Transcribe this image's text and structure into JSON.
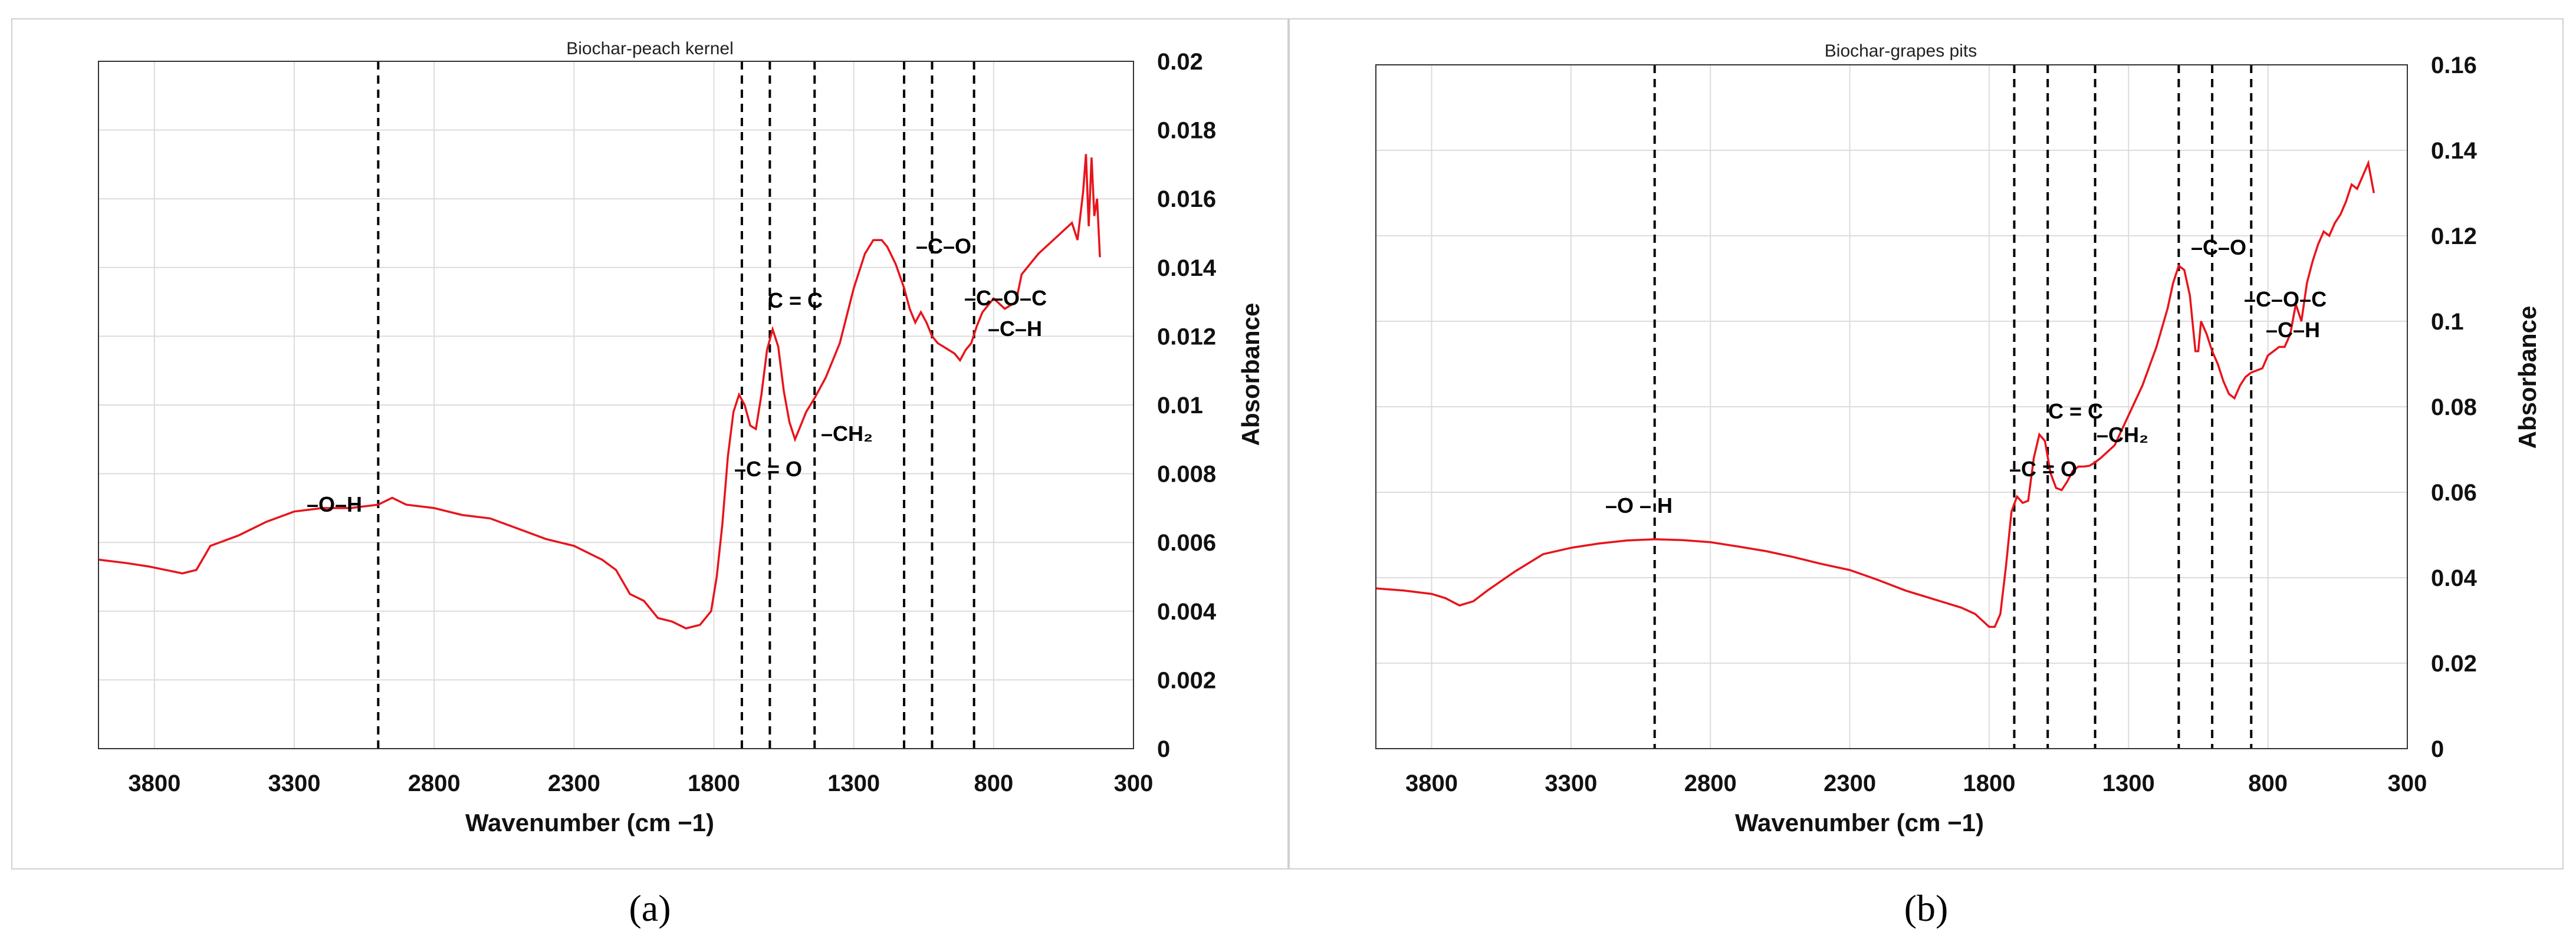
{
  "chart_data": [
    {
      "type": "line",
      "panel_label": "(a)",
      "title": "Biochar-peach kernel",
      "xlabel": "Wavenumber (cm −1)",
      "ylabel": "Absorbance",
      "xlim": [
        4000,
        300
      ],
      "ylim": [
        0,
        0.02
      ],
      "x_ticks": [
        "3800",
        "3300",
        "2800",
        "2300",
        "1800",
        "1300",
        "800",
        "300"
      ],
      "y_ticks": [
        "0",
        "0.002",
        "0.004",
        "0.006",
        "0.008",
        "0.01",
        "0.012",
        "0.014",
        "0.016",
        "0.018",
        "0.02"
      ],
      "y_axis_side": "right",
      "grid": true,
      "line_color": "#e8141b",
      "series": [
        {
          "x": [
            4000,
            3900,
            3820,
            3760,
            3700,
            3650,
            3600,
            3500,
            3400,
            3300,
            3200,
            3100,
            3000,
            2950,
            2900,
            2800,
            2700,
            2600,
            2500,
            2400,
            2300,
            2200,
            2150,
            2100,
            2050,
            2000,
            1950,
            1900,
            1850,
            1810,
            1790,
            1770,
            1750,
            1730,
            1710,
            1690,
            1670,
            1650,
            1630,
            1610,
            1590,
            1570,
            1550,
            1530,
            1510,
            1490,
            1470,
            1440,
            1400,
            1350,
            1300,
            1260,
            1230,
            1200,
            1180,
            1150,
            1120,
            1100,
            1080,
            1060,
            1040,
            1020,
            1000,
            980,
            960,
            940,
            920,
            900,
            880,
            860,
            840,
            800,
            760,
            720,
            700,
            670,
            640,
            600,
            560,
            520,
            500,
            480,
            470,
            460,
            450,
            440,
            430,
            420
          ],
          "values": [
            0.0055,
            0.0054,
            0.0053,
            0.0052,
            0.0051,
            0.0052,
            0.0059,
            0.0062,
            0.0066,
            0.0069,
            0.007,
            0.007,
            0.0071,
            0.0073,
            0.0071,
            0.007,
            0.0068,
            0.0067,
            0.0064,
            0.0061,
            0.0059,
            0.0055,
            0.0052,
            0.0045,
            0.0043,
            0.0038,
            0.0037,
            0.0035,
            0.0036,
            0.004,
            0.005,
            0.0065,
            0.0085,
            0.0098,
            0.0103,
            0.01,
            0.0094,
            0.0093,
            0.0103,
            0.0116,
            0.0122,
            0.0117,
            0.0104,
            0.0095,
            0.009,
            0.0094,
            0.0098,
            0.0102,
            0.0108,
            0.0118,
            0.0134,
            0.0144,
            0.0148,
            0.0148,
            0.0146,
            0.0141,
            0.0134,
            0.0128,
            0.0124,
            0.0127,
            0.0124,
            0.012,
            0.0118,
            0.0117,
            0.0116,
            0.0115,
            0.0113,
            0.0116,
            0.0118,
            0.0123,
            0.0127,
            0.0131,
            0.0128,
            0.013,
            0.0138,
            0.0141,
            0.0144,
            0.0147,
            0.015,
            0.0153,
            0.0148,
            0.0162,
            0.0173,
            0.0152,
            0.0172,
            0.0155,
            0.016,
            0.0143
          ]
        }
      ],
      "reference_lines": [
        {
          "x": 3000,
          "label": "–O–H"
        },
        {
          "x": 1700,
          "label": "–C = O"
        },
        {
          "x": 1600,
          "label": "C = C"
        },
        {
          "x": 1440,
          "label": "–CH₂"
        },
        {
          "x": 1120,
          "label": "–C–O"
        },
        {
          "x": 1020,
          "label": "–C–O–C"
        },
        {
          "x": 870,
          "label": "–C–H"
        }
      ]
    },
    {
      "type": "line",
      "panel_label": "(b)",
      "title": "Biochar-grapes pits",
      "xlabel": "Wavenumber (cm −1)",
      "ylabel": "Absorbance",
      "xlim": [
        4000,
        300
      ],
      "ylim": [
        0,
        0.16
      ],
      "x_ticks": [
        "3800",
        "3300",
        "2800",
        "2300",
        "1800",
        "1300",
        "800",
        "300"
      ],
      "y_ticks": [
        "0",
        "0.02",
        "0.04",
        "0.06",
        "0.08",
        "0.1",
        "0.12",
        "0.14",
        "0.16"
      ],
      "y_axis_side": "right",
      "grid": true,
      "line_color": "#e8141b",
      "series": [
        {
          "x": [
            4000,
            3900,
            3800,
            3750,
            3700,
            3650,
            3600,
            3500,
            3400,
            3300,
            3200,
            3100,
            3000,
            2900,
            2800,
            2700,
            2600,
            2500,
            2400,
            2300,
            2200,
            2100,
            2000,
            1900,
            1850,
            1800,
            1780,
            1760,
            1740,
            1720,
            1700,
            1680,
            1660,
            1640,
            1620,
            1600,
            1580,
            1560,
            1540,
            1520,
            1500,
            1480,
            1460,
            1440,
            1420,
            1400,
            1350,
            1300,
            1250,
            1200,
            1160,
            1140,
            1120,
            1100,
            1080,
            1060,
            1050,
            1040,
            1020,
            1000,
            980,
            960,
            940,
            920,
            900,
            880,
            860,
            840,
            820,
            800,
            780,
            760,
            740,
            720,
            700,
            680,
            660,
            640,
            620,
            600,
            580,
            560,
            540,
            520,
            500,
            480,
            460,
            440,
            420
          ],
          "values": [
            0.0375,
            0.037,
            0.0362,
            0.0352,
            0.0335,
            0.0345,
            0.037,
            0.0415,
            0.0455,
            0.047,
            0.048,
            0.0487,
            0.049,
            0.0488,
            0.0483,
            0.0473,
            0.0462,
            0.0448,
            0.0432,
            0.0418,
            0.0395,
            0.037,
            0.035,
            0.033,
            0.0315,
            0.0285,
            0.0285,
            0.0315,
            0.0425,
            0.0555,
            0.059,
            0.0575,
            0.058,
            0.068,
            0.0735,
            0.072,
            0.0645,
            0.061,
            0.0605,
            0.0625,
            0.065,
            0.066,
            0.066,
            0.0662,
            0.067,
            0.068,
            0.071,
            0.078,
            0.085,
            0.094,
            0.103,
            0.109,
            0.113,
            0.112,
            0.106,
            0.093,
            0.093,
            0.1,
            0.097,
            0.093,
            0.09,
            0.086,
            0.083,
            0.082,
            0.085,
            0.087,
            0.088,
            0.0885,
            0.089,
            0.092,
            0.093,
            0.094,
            0.094,
            0.097,
            0.104,
            0.1,
            0.109,
            0.114,
            0.118,
            0.121,
            0.12,
            0.123,
            0.125,
            0.128,
            0.132,
            0.131,
            0.134,
            0.137,
            0.13
          ]
        }
      ],
      "reference_lines": [
        {
          "x": 3000,
          "label": "–O – H"
        },
        {
          "x": 1710,
          "label": "–C = O"
        },
        {
          "x": 1590,
          "label": "C = C"
        },
        {
          "x": 1420,
          "label": "–CH₂"
        },
        {
          "x": 1120,
          "label": "–C–O"
        },
        {
          "x": 1000,
          "label": "–C–O–C"
        },
        {
          "x": 860,
          "label": "–C–H"
        }
      ]
    }
  ]
}
